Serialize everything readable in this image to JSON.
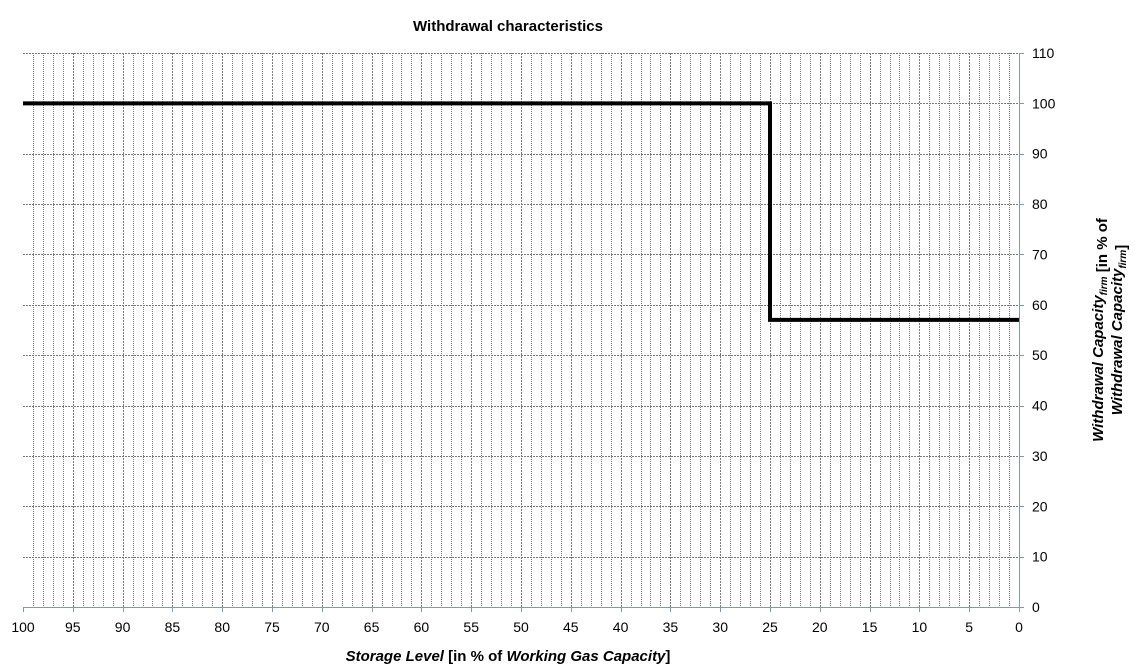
{
  "chart_data": {
    "type": "line",
    "title": "Withdrawal characteristics",
    "xlabel": {
      "parts": [
        {
          "text": "Storage Level",
          "italic": true,
          "bold": true
        },
        {
          "text": " [in % of ",
          "italic": false,
          "bold": true
        },
        {
          "text": "Working Gas Capacity",
          "italic": true,
          "bold": true
        },
        {
          "text": "]",
          "italic": false,
          "bold": true
        }
      ]
    },
    "ylabel": {
      "line1": [
        {
          "text": "Withdrawal Capacity",
          "italic": true,
          "bold": true,
          "sub": false
        },
        {
          "text": "firm",
          "italic": true,
          "bold": true,
          "sub": true
        },
        {
          "text": " [in % of",
          "italic": false,
          "bold": true,
          "sub": false
        }
      ],
      "line2": [
        {
          "text": "Withdrawal Capacity",
          "italic": true,
          "bold": true,
          "sub": false
        },
        {
          "text": "firm",
          "italic": true,
          "bold": true,
          "sub": true
        },
        {
          "text": "]",
          "italic": false,
          "bold": true,
          "sub": false
        }
      ]
    },
    "xlim": [
      100,
      0
    ],
    "x_reversed": true,
    "ylim": [
      0,
      110
    ],
    "x_ticks": [
      100,
      95,
      90,
      85,
      80,
      75,
      70,
      65,
      60,
      55,
      50,
      45,
      40,
      35,
      30,
      25,
      20,
      15,
      10,
      5,
      0
    ],
    "x_tick_labels": [
      "100",
      "95",
      "90",
      "85",
      "80",
      "75",
      "70",
      "65",
      "60",
      "55",
      "50",
      "45",
      "40",
      "35",
      "30",
      "25",
      "20",
      "15",
      "10",
      "5",
      "0"
    ],
    "x_minor_step": 1,
    "y_ticks": [
      0,
      10,
      20,
      30,
      40,
      50,
      60,
      70,
      80,
      90,
      100,
      110
    ],
    "y_tick_labels": [
      "0",
      "10",
      "20",
      "30",
      "40",
      "50",
      "60",
      "70",
      "80",
      "90",
      "100",
      "110"
    ],
    "y_axis_side": "right",
    "grid": true,
    "legend": "none",
    "series": [
      {
        "points": [
          {
            "x": 100,
            "y": 100
          },
          {
            "x": 25,
            "y": 100
          },
          {
            "x": 25,
            "y": 57
          },
          {
            "x": 0,
            "y": 57
          }
        ],
        "color": "#000000"
      }
    ],
    "colors": {
      "grid_minor": "#7a7a7a",
      "grid_major": "#7a7a7a",
      "axis": "#8497b0",
      "line": "#000000"
    }
  }
}
